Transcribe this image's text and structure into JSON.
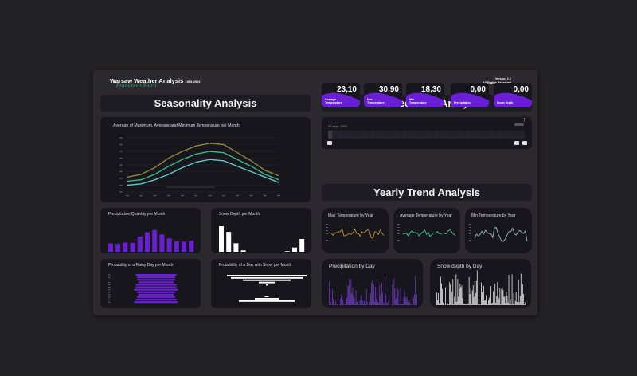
{
  "header": {
    "title": "Warsaw Weather Analysis",
    "years": "1993-2022",
    "signature": "Francesco Storti",
    "version": "Version 1.1",
    "rights": "All Rights Reserved"
  },
  "sections": {
    "seasonality": "Seasonality Analysis",
    "detailed": "Detailed Time Analysis",
    "yearly": "Yearly Trend Analysis"
  },
  "charts": {
    "temp_month": "Average of Maximum, Average and Minimum Temperature per Month",
    "precip_month": "Precipitation Quantity per Month",
    "snow_month": "Snow Depth per Month",
    "rainy_day": "Probability of a Rainy Day per Month",
    "snow_day": "Probability of a Day with Snow per Month",
    "max_year": "Max Temperature by Year",
    "avg_year": "Average Temperature by Year",
    "min_year": "Min Temperature by Year",
    "precip_day": "Precipitation by Day",
    "snowdepth_day": "Snow depth by Day"
  },
  "timeline": {
    "date_label": "02 sept. 2022"
  },
  "kpis": [
    {
      "value": "23,10",
      "label": "Average Temperature"
    },
    {
      "value": "30,90",
      "label": "Max Temperature"
    },
    {
      "value": "18,30",
      "label": "Min Temperature"
    },
    {
      "value": "0,00",
      "label": "Precipitation"
    },
    {
      "value": "0,00",
      "label": "Snow depth"
    }
  ],
  "colors": {
    "max_line": "#8a8a3a",
    "avg_line": "#3ab88a",
    "min_line": "#63c8c6",
    "accent": "#6a1fd6",
    "bar": "#ffffff"
  },
  "chart_data": [
    {
      "type": "line",
      "x": [
        "Jan",
        "Feb",
        "Mar",
        "Apr",
        "May",
        "Jun",
        "Jul",
        "Aug",
        "Sep",
        "Oct",
        "Nov",
        "Dec"
      ],
      "series": [
        {
          "values": [
            1,
            3,
            8,
            15,
            20,
            24,
            26,
            25,
            19,
            13,
            6,
            2
          ]
        },
        {
          "values": [
            -2,
            -1,
            3,
            9,
            14,
            18,
            20,
            19,
            14,
            9,
            3,
            -1
          ]
        },
        {
          "values": [
            -5,
            -4,
            -1,
            3,
            8,
            12,
            14,
            13,
            9,
            5,
            1,
            -3
          ]
        }
      ]
    },
    {
      "type": "bar",
      "values": [
        30,
        28,
        33,
        32,
        55,
        70,
        78,
        62,
        48,
        38,
        36,
        40
      ]
    },
    {
      "type": "bar",
      "values": [
        9,
        7,
        3,
        0.5,
        0,
        0,
        0,
        0,
        0,
        0.2,
        1.5,
        4.5
      ]
    },
    {
      "type": "bar",
      "values": [
        14,
        13,
        13,
        12,
        14,
        14,
        15,
        13,
        12,
        13,
        14,
        15
      ]
    },
    {
      "type": "bar",
      "values": [
        10,
        9,
        6,
        2,
        0.2,
        0,
        0,
        0,
        0,
        0.5,
        3,
        7
      ]
    }
  ]
}
